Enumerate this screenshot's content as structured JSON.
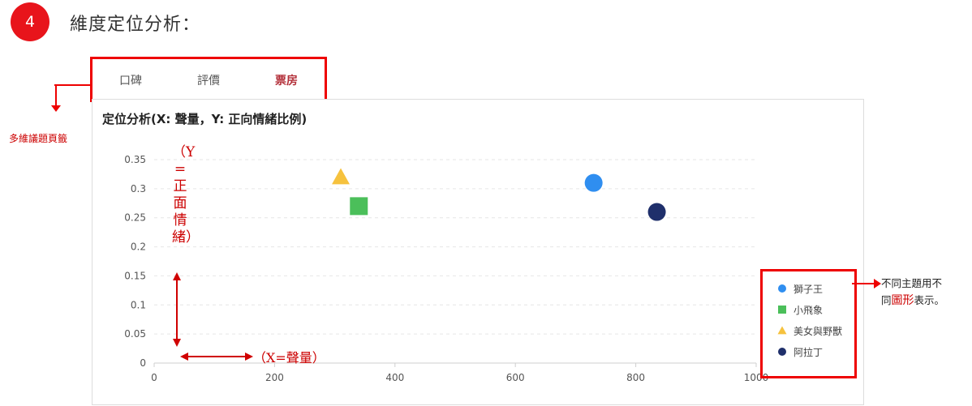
{
  "step": {
    "number": "4",
    "title": "維度定位分析："
  },
  "tabs": [
    {
      "label": "口碑",
      "active": false
    },
    {
      "label": "評價",
      "active": false
    },
    {
      "label": "票房",
      "active": true
    }
  ],
  "annotations": {
    "tabs_note": "多維議題頁籤",
    "y_note": "（Y=正面情緒）",
    "x_note": "（X=聲量）",
    "legend_note_1": "不同主題用不",
    "legend_note_2a": "同",
    "legend_note_2b": "圖形",
    "legend_note_2c": "表示。"
  },
  "colors": {
    "accent": "#e8141b",
    "annotation": "#cc0000",
    "active_tab": "#b3303a"
  },
  "chart_data": {
    "type": "scatter",
    "title": "定位分析(X: 聲量，Y: 正向情緒比例)",
    "xlim": [
      0,
      1000
    ],
    "ylim": [
      0,
      0.35
    ],
    "x_ticks": [
      "0",
      "200",
      "400",
      "600",
      "800",
      "1000"
    ],
    "y_ticks": [
      "0",
      "0.05",
      "0.1",
      "0.15",
      "0.2",
      "0.25",
      "0.3",
      "0.35"
    ],
    "grid": true,
    "legend": "right",
    "series": [
      {
        "name": "獅子王",
        "shape": "circle",
        "color": "#2f8ef0",
        "x": 730,
        "y": 0.31
      },
      {
        "name": "小飛象",
        "shape": "square",
        "color": "#4bbf5a",
        "x": 340,
        "y": 0.27
      },
      {
        "name": "美女與野獸",
        "shape": "triangle",
        "color": "#f6c23e",
        "x": 310,
        "y": 0.32
      },
      {
        "name": "阿拉丁",
        "shape": "circle",
        "color": "#1f2f6b",
        "x": 835,
        "y": 0.26
      }
    ]
  }
}
